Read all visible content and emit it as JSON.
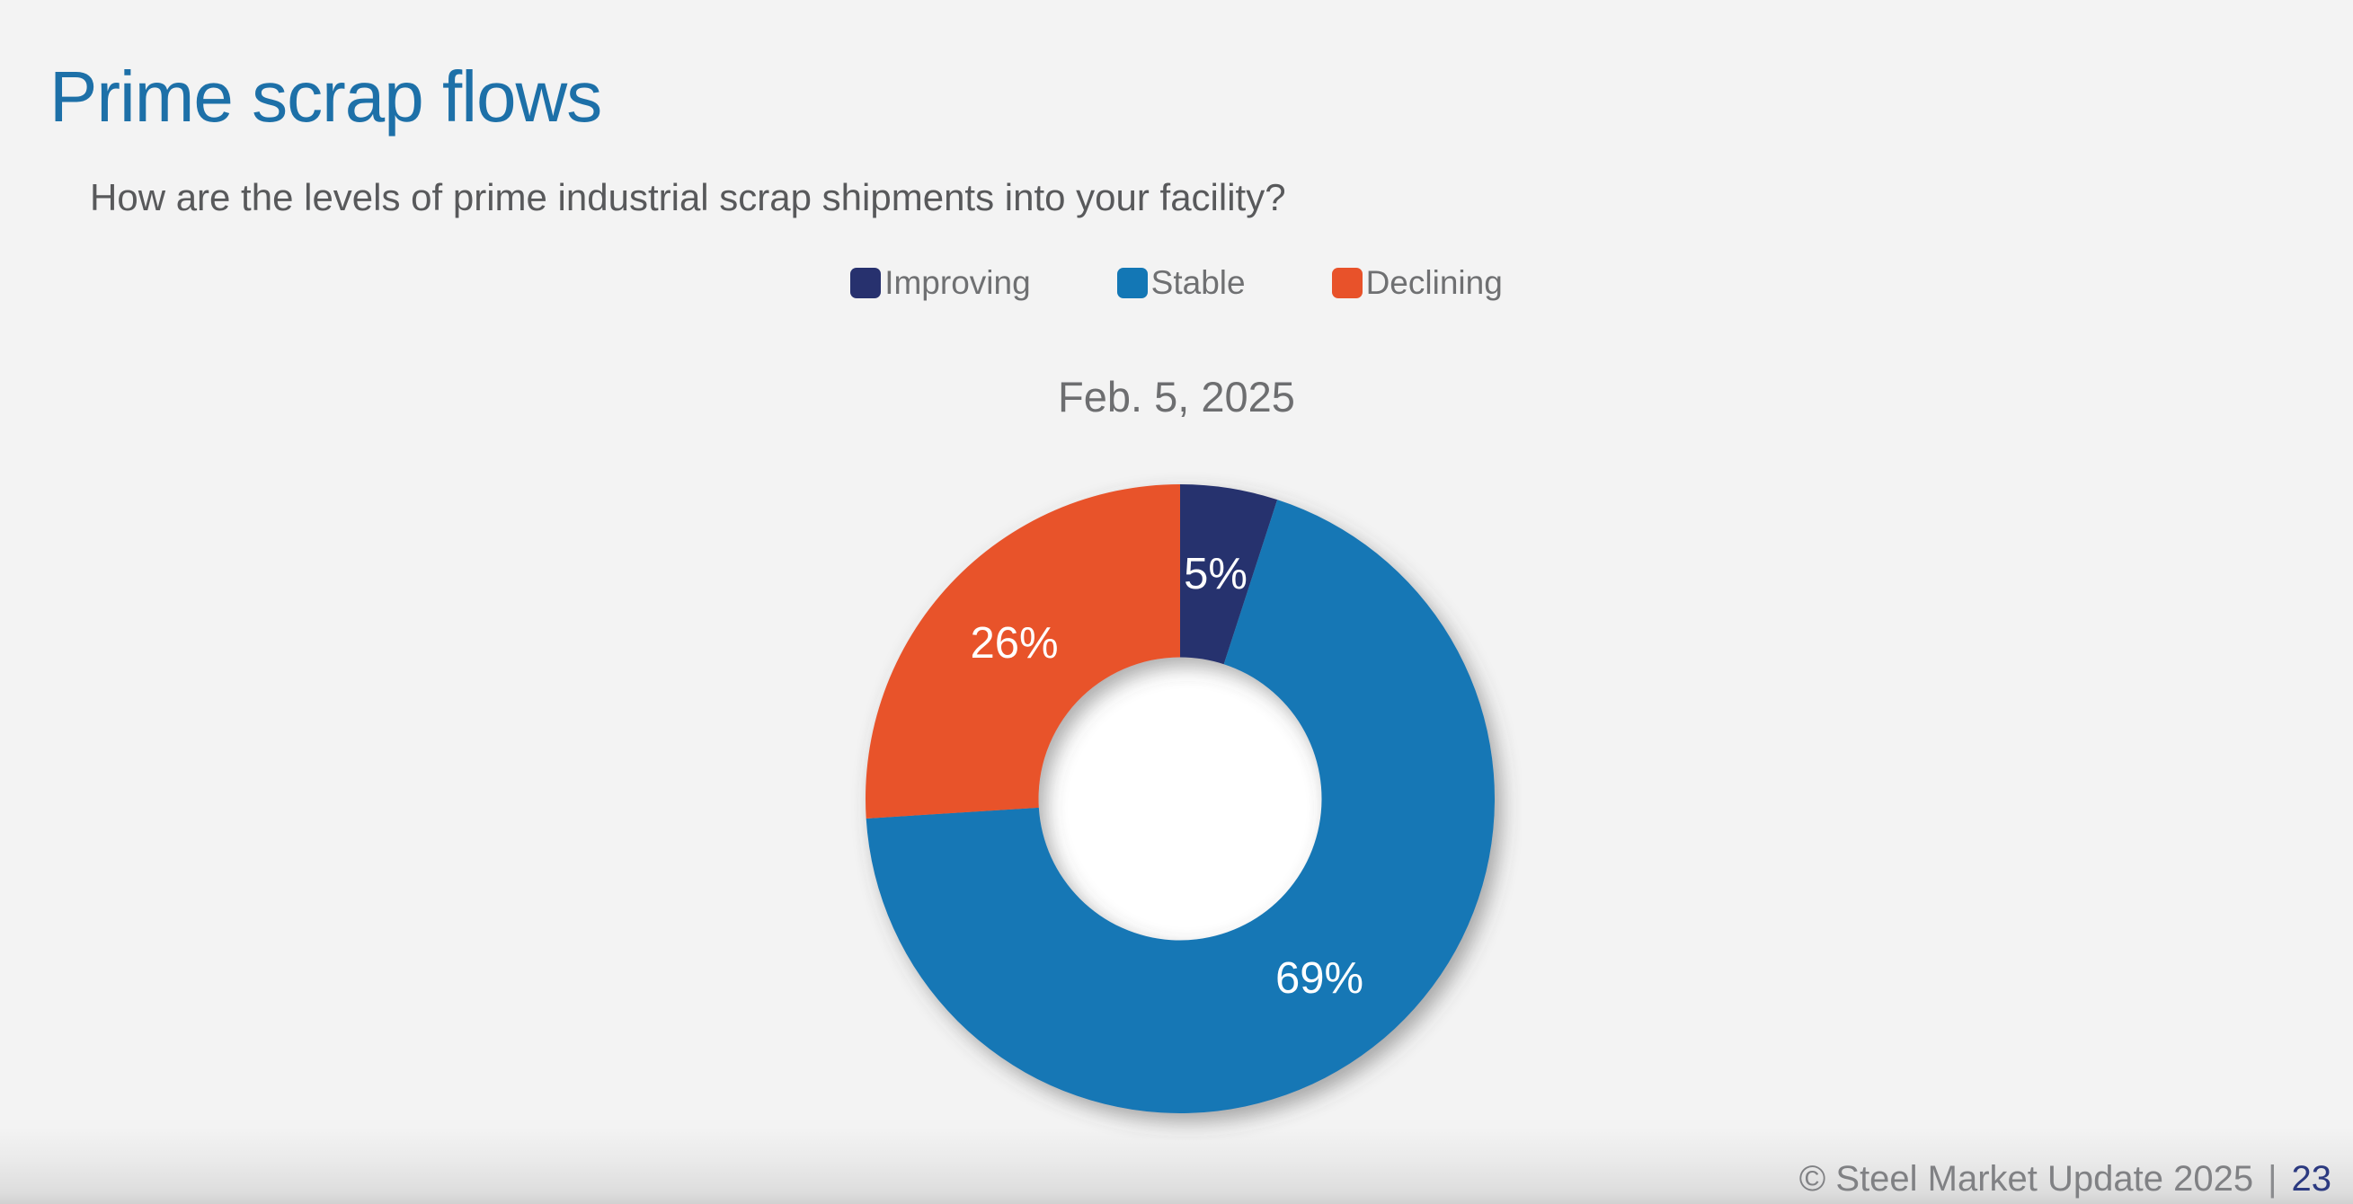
{
  "page": {
    "title": "Prime scrap flows",
    "question": "How are the levels of prime industrial scrap shipments into your facility?",
    "footer": {
      "copyright": "© Steel Market Update 2025",
      "separator": "|",
      "page_number": "23"
    }
  },
  "colors": {
    "background": "#f3f3f3",
    "title": "#1d70a8",
    "question_text": "#58595b",
    "legend_text": "#6f7072",
    "date_text": "#6d6e70",
    "label_text": "#ffffff",
    "footer_text": "#808184",
    "page_number": "#2c3a80",
    "improving": "#27316e",
    "stable": "#1377b5",
    "declining": "#e8522a"
  },
  "chart_data": {
    "type": "pie",
    "subtype": "donut",
    "title": "Feb. 5, 2025",
    "categories": [
      "Improving",
      "Stable",
      "Declining"
    ],
    "values": [
      5,
      69,
      26
    ],
    "labels": [
      "5%",
      "69%",
      "26%"
    ],
    "unit": "%",
    "series_colors": [
      "#27316e",
      "#1377b5",
      "#e8522a"
    ],
    "legend_position": "top-center",
    "start_angle_deg": 0,
    "direction": "clockwise",
    "inner_radius_ratio": 0.45,
    "data_label_color": "#ffffff",
    "data_label_radius_ratio": 0.723
  }
}
